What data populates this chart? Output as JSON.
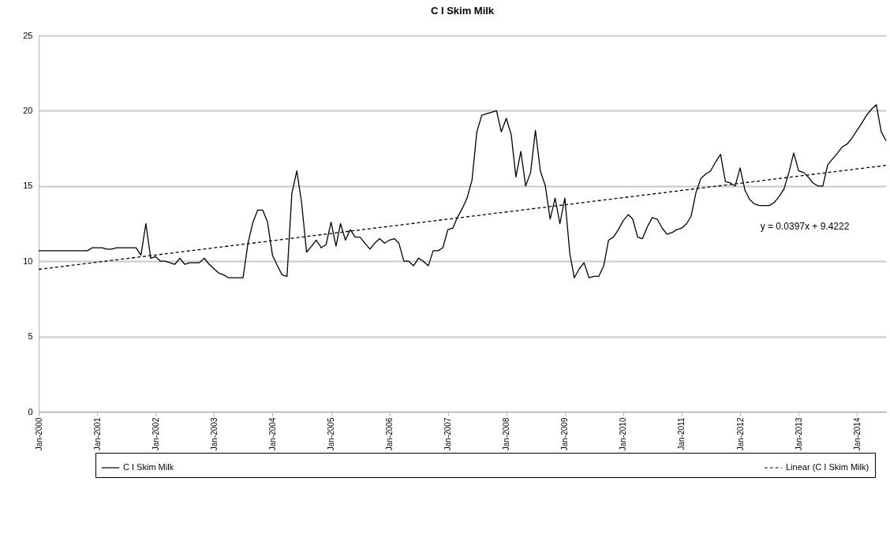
{
  "chart_data": {
    "type": "line",
    "title": "C I Skim Milk",
    "x": [
      "2000-01",
      "2000-02",
      "2000-03",
      "2000-04",
      "2000-05",
      "2000-06",
      "2000-07",
      "2000-08",
      "2000-09",
      "2000-10",
      "2000-11",
      "2000-12",
      "2001-01",
      "2001-02",
      "2001-03",
      "2001-04",
      "2001-05",
      "2001-06",
      "2001-07",
      "2001-08",
      "2001-09",
      "2001-10",
      "2001-11",
      "2001-12",
      "2002-01",
      "2002-02",
      "2002-03",
      "2002-04",
      "2002-05",
      "2002-06",
      "2002-07",
      "2002-08",
      "2002-09",
      "2002-10",
      "2002-11",
      "2002-12",
      "2003-01",
      "2003-02",
      "2003-03",
      "2003-04",
      "2003-05",
      "2003-06",
      "2003-07",
      "2003-08",
      "2003-09",
      "2003-10",
      "2003-11",
      "2003-12",
      "2004-01",
      "2004-02",
      "2004-03",
      "2004-04",
      "2004-05",
      "2004-06",
      "2004-07",
      "2004-08",
      "2004-09",
      "2004-10",
      "2004-11",
      "2004-12",
      "2005-01",
      "2005-02",
      "2005-03",
      "2005-04",
      "2005-05",
      "2005-06",
      "2005-07",
      "2005-08",
      "2005-09",
      "2005-10",
      "2005-11",
      "2005-12",
      "2006-01",
      "2006-02",
      "2006-03",
      "2006-04",
      "2006-05",
      "2006-06",
      "2006-07",
      "2006-08",
      "2006-09",
      "2006-10",
      "2006-11",
      "2006-12",
      "2007-01",
      "2007-02",
      "2007-03",
      "2007-04",
      "2007-05",
      "2007-06",
      "2007-07",
      "2007-08",
      "2007-09",
      "2007-10",
      "2007-11",
      "2007-12",
      "2008-01",
      "2008-02",
      "2008-03",
      "2008-04",
      "2008-05",
      "2008-06",
      "2008-07",
      "2008-08",
      "2008-09",
      "2008-10",
      "2008-11",
      "2008-12",
      "2009-01",
      "2009-02",
      "2009-03",
      "2009-04",
      "2009-05",
      "2009-06",
      "2009-07",
      "2009-08",
      "2009-09",
      "2009-10",
      "2009-11",
      "2009-12",
      "2010-01",
      "2010-02",
      "2010-03",
      "2010-04",
      "2010-05",
      "2010-06",
      "2010-07",
      "2010-08",
      "2010-09",
      "2010-10",
      "2010-11",
      "2010-12",
      "2011-01",
      "2011-02",
      "2011-03",
      "2011-04",
      "2011-05",
      "2011-06",
      "2011-07",
      "2011-08",
      "2011-09",
      "2011-10",
      "2011-11",
      "2011-12",
      "2012-01",
      "2012-02",
      "2012-03",
      "2012-04",
      "2012-05",
      "2012-06",
      "2012-07",
      "2012-08",
      "2012-09",
      "2012-10",
      "2012-11",
      "2012-12",
      "2013-01",
      "2013-02",
      "2013-03",
      "2013-04",
      "2013-05",
      "2013-06",
      "2013-07",
      "2013-08",
      "2013-09",
      "2013-10",
      "2013-11",
      "2013-12",
      "2014-01",
      "2014-02",
      "2014-03",
      "2014-04",
      "2014-05",
      "2014-06",
      "2014-07"
    ],
    "series": [
      {
        "name": "C I Skim Milk",
        "type": "line",
        "color": "#000000",
        "line_style": "solid",
        "values": [
          10.7,
          10.7,
          10.7,
          10.7,
          10.7,
          10.7,
          10.7,
          10.7,
          10.7,
          10.7,
          10.7,
          10.9,
          10.9,
          10.9,
          10.8,
          10.8,
          10.9,
          10.9,
          10.9,
          10.9,
          10.9,
          10.4,
          12.5,
          10.2,
          10.3,
          10.0,
          10.0,
          9.9,
          9.8,
          10.2,
          9.8,
          9.9,
          9.9,
          9.9,
          10.2,
          9.8,
          9.5,
          9.2,
          9.1,
          8.9,
          8.9,
          8.9,
          8.9,
          11.2,
          12.6,
          13.4,
          13.4,
          12.6,
          10.4,
          9.7,
          9.1,
          9.0,
          14.5,
          16.0,
          13.9,
          10.6,
          11.0,
          11.4,
          10.9,
          11.1,
          12.6,
          11.0,
          12.5,
          11.4,
          12.1,
          11.6,
          11.6,
          11.2,
          10.8,
          11.2,
          11.5,
          11.2,
          11.4,
          11.5,
          11.2,
          10.0,
          10.0,
          9.7,
          10.2,
          10.0,
          9.7,
          10.7,
          10.7,
          10.9,
          12.1,
          12.2,
          12.9,
          13.5,
          14.2,
          15.4,
          18.6,
          19.7,
          19.8,
          19.9,
          20.0,
          18.6,
          19.5,
          18.4,
          15.6,
          17.3,
          15.0,
          15.9,
          18.7,
          16.0,
          15.0,
          12.8,
          14.2,
          12.5,
          14.2,
          10.5,
          8.9,
          9.5,
          9.9,
          8.9,
          9.0,
          9.0,
          9.7,
          11.4,
          11.6,
          12.1,
          12.7,
          13.1,
          12.8,
          11.6,
          11.5,
          12.3,
          12.9,
          12.8,
          12.2,
          11.8,
          11.9,
          12.1,
          12.2,
          12.5,
          13.0,
          14.6,
          15.5,
          15.8,
          16.0,
          16.6,
          17.1,
          15.3,
          15.2,
          15.0,
          16.2,
          14.7,
          14.1,
          13.8,
          13.7,
          13.7,
          13.7,
          13.9,
          14.3,
          14.8,
          15.9,
          17.2,
          16.0,
          15.9,
          15.6,
          15.2,
          15.0,
          15.0,
          16.4,
          16.8,
          17.2,
          17.6,
          17.8,
          18.2,
          18.7,
          19.2,
          19.7,
          20.1,
          20.4,
          18.6,
          18.0
        ]
      },
      {
        "name": "Linear (C I Skim Milk)",
        "type": "line",
        "color": "#000000",
        "line_style": "dashed",
        "x": [
          "2000-01",
          "2014-07"
        ],
        "values": [
          9.46,
          16.37
        ]
      }
    ],
    "xlim": [
      "2000-01",
      "2014-07"
    ],
    "xticks": [
      {
        "value": "2000-01",
        "label": "Jan-2000"
      },
      {
        "value": "2001-01",
        "label": "Jan-2001"
      },
      {
        "value": "2002-01",
        "label": "Jan-2002"
      },
      {
        "value": "2003-01",
        "label": "Jan-2003"
      },
      {
        "value": "2004-01",
        "label": "Jan-2004"
      },
      {
        "value": "2005-01",
        "label": "Jan-2005"
      },
      {
        "value": "2006-01",
        "label": "Jan-2006"
      },
      {
        "value": "2007-01",
        "label": "Jan-2007"
      },
      {
        "value": "2008-01",
        "label": "Jan-2008"
      },
      {
        "value": "2009-01",
        "label": "Jan-2009"
      },
      {
        "value": "2010-01",
        "label": "Jan-2010"
      },
      {
        "value": "2011-01",
        "label": "Jan-2011"
      },
      {
        "value": "2012-01",
        "label": "Jan-2012"
      },
      {
        "value": "2013-01",
        "label": "Jan-2013"
      },
      {
        "value": "2014-01",
        "label": "Jan-2014"
      }
    ],
    "ylim": [
      0,
      25
    ],
    "yticks": [
      0,
      5,
      10,
      15,
      20,
      25
    ],
    "grid": "y",
    "legend": "bottom",
    "marker": "none",
    "annotations": [
      "y = 0.0397x + 9.4222"
    ]
  }
}
